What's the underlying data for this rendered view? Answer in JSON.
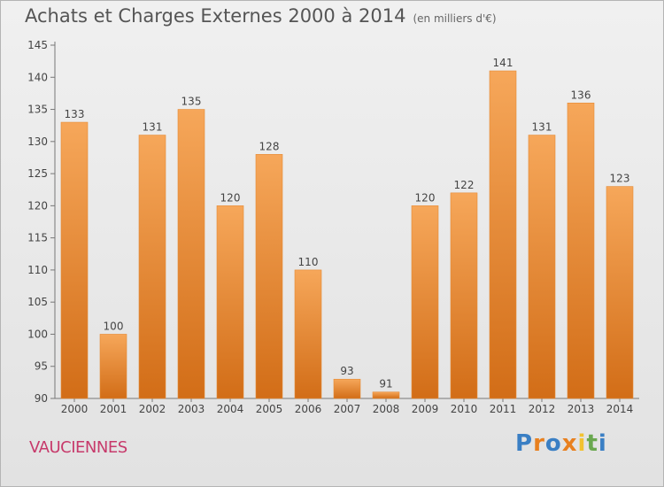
{
  "header": {
    "title": "Achats et Charges Externes 2000 à 2014",
    "unit": "(en milliers d'€)"
  },
  "footer": {
    "commune": "VAUCIENNES",
    "logo": [
      "P",
      "r",
      "o",
      "x",
      "i",
      "t",
      "i"
    ],
    "logo_colors": [
      "#3a7fc4",
      "#e8801f",
      "#3a7fc4",
      "#e8801f",
      "#f2c230",
      "#6aa84f",
      "#3a7fc4"
    ]
  },
  "colors": {
    "bar_light": "#f6a75a",
    "bar_dark": "#d26d17",
    "bar_edge": "#e58a35"
  },
  "chart_data": {
    "type": "bar",
    "title": "Achats et Charges Externes 2000 à 2014",
    "subtitle": "(en milliers d'€)",
    "categories": [
      "2000",
      "2001",
      "2002",
      "2003",
      "2004",
      "2005",
      "2006",
      "2007",
      "2008",
      "2009",
      "2010",
      "2011",
      "2012",
      "2013",
      "2014"
    ],
    "values": [
      133,
      100,
      131,
      135,
      120,
      128,
      110,
      93,
      91,
      120,
      122,
      141,
      131,
      136,
      123
    ],
    "ylim": [
      90,
      145
    ],
    "yticks": [
      90,
      95,
      100,
      105,
      110,
      115,
      120,
      125,
      130,
      135,
      140,
      145
    ],
    "grid": false,
    "data_labels": true
  }
}
